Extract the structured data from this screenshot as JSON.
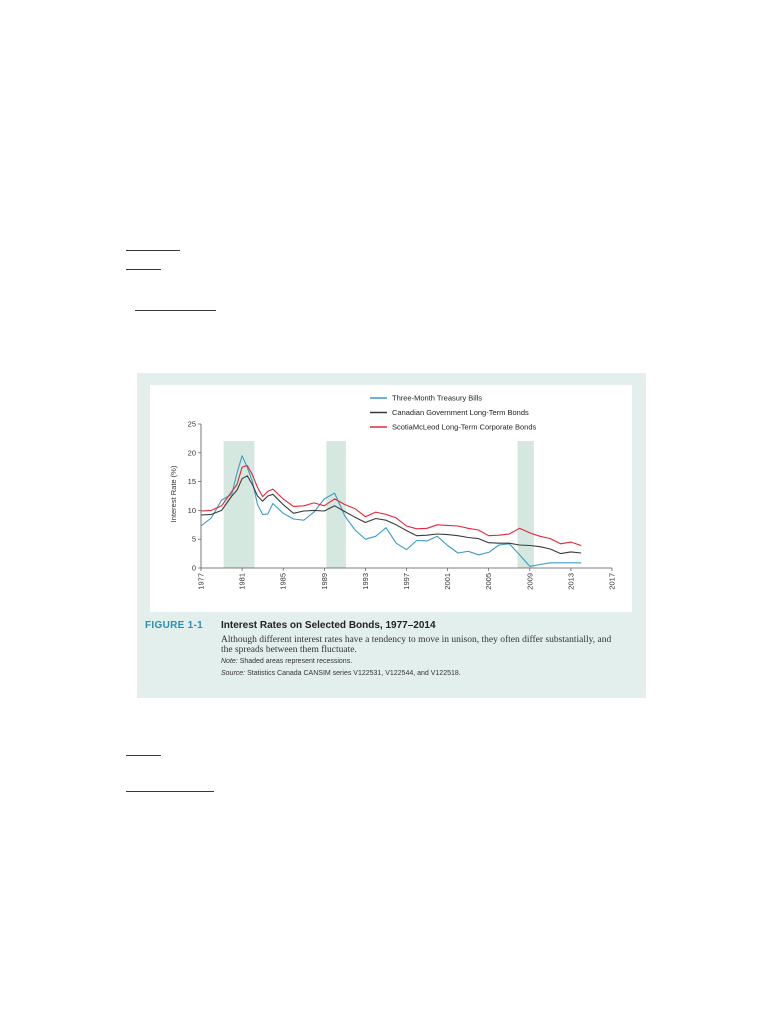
{
  "figure": {
    "number": "FIGURE 1-1",
    "title": "Interest Rates on Selected Bonds, 1977–2014",
    "description": "Although different interest rates have a tendency to move in unison, they often differ substantially, and the spreads between them fluctuate.",
    "note_label": "Note:",
    "note_text": "Shaded areas represent recessions.",
    "source_label": "Source:",
    "source_text": "Statistics Canada CANSIM series V122531, V122544, and V122518."
  },
  "colors": {
    "panel": "#e3efec",
    "recession": "#d4e8df",
    "tbill": "#3d9cc6",
    "gov": "#3b3b3b",
    "corp": "#e0283a"
  },
  "chart_data": {
    "type": "line",
    "title": "",
    "xlabel": "",
    "ylabel": "Interest Rate (%)",
    "xlim": [
      1977,
      2017
    ],
    "ylim": [
      0,
      25
    ],
    "xticks": [
      "1977",
      "1981",
      "1985",
      "1989",
      "1993",
      "1997",
      "2001",
      "2005",
      "2009",
      "2013",
      "2017"
    ],
    "yticks": [
      "0",
      "5",
      "10",
      "15",
      "20",
      "25"
    ],
    "legend_position": "top-right",
    "recessions": [
      [
        1979.2,
        1982.2
      ],
      [
        1989.2,
        1991.1
      ],
      [
        2007.8,
        2009.4
      ]
    ],
    "x": [
      1977,
      1978,
      1979,
      1980,
      1980.5,
      1981,
      1981.5,
      1982,
      1982.5,
      1983,
      1983.5,
      1984,
      1985,
      1986,
      1987,
      1988,
      1989,
      1990,
      1991,
      1992,
      1993,
      1994,
      1995,
      1996,
      1997,
      1998,
      1999,
      2000,
      2001,
      2002,
      2003,
      2004,
      2005,
      2006,
      2007,
      2008,
      2009,
      2010,
      2011,
      2012,
      2013,
      2014
    ],
    "series": [
      {
        "name": "Three-Month Treasury Bills",
        "color_key": "tbill",
        "values": [
          7.3,
          8.7,
          11.8,
          12.8,
          16.5,
          19.5,
          17.5,
          15.0,
          11.0,
          9.3,
          9.4,
          11.2,
          9.5,
          8.5,
          8.3,
          9.7,
          12.0,
          13.0,
          9.0,
          6.6,
          5.0,
          5.5,
          7.0,
          4.3,
          3.2,
          4.8,
          4.7,
          5.5,
          3.9,
          2.6,
          2.9,
          2.3,
          2.7,
          4.0,
          4.2,
          2.3,
          0.3,
          0.6,
          0.9,
          0.9,
          0.9,
          0.9
        ]
      },
      {
        "name": "Canadian Government Long-Term Bonds",
        "color_key": "gov",
        "values": [
          9.2,
          9.3,
          10.0,
          12.5,
          13.5,
          15.5,
          16.0,
          14.5,
          12.5,
          11.6,
          12.5,
          12.8,
          11.0,
          9.5,
          9.9,
          10.0,
          9.9,
          10.8,
          9.8,
          8.8,
          7.9,
          8.6,
          8.3,
          7.5,
          6.5,
          5.6,
          5.7,
          5.9,
          5.8,
          5.6,
          5.3,
          5.1,
          4.4,
          4.3,
          4.3,
          4.0,
          3.9,
          3.7,
          3.3,
          2.5,
          2.8,
          2.6
        ]
      },
      {
        "name": "ScotiaMcLeod Long-Term Corporate Bonds",
        "color_key": "corp",
        "values": [
          9.9,
          10.0,
          10.8,
          13.3,
          14.5,
          17.5,
          17.8,
          16.2,
          14.0,
          12.4,
          13.3,
          13.7,
          12.0,
          10.7,
          10.8,
          11.3,
          10.8,
          12.0,
          11.0,
          10.3,
          8.9,
          9.7,
          9.3,
          8.7,
          7.3,
          6.8,
          6.9,
          7.5,
          7.4,
          7.3,
          6.9,
          6.6,
          5.6,
          5.7,
          5.9,
          6.9,
          6.1,
          5.5,
          5.1,
          4.2,
          4.5,
          3.9
        ]
      }
    ]
  }
}
